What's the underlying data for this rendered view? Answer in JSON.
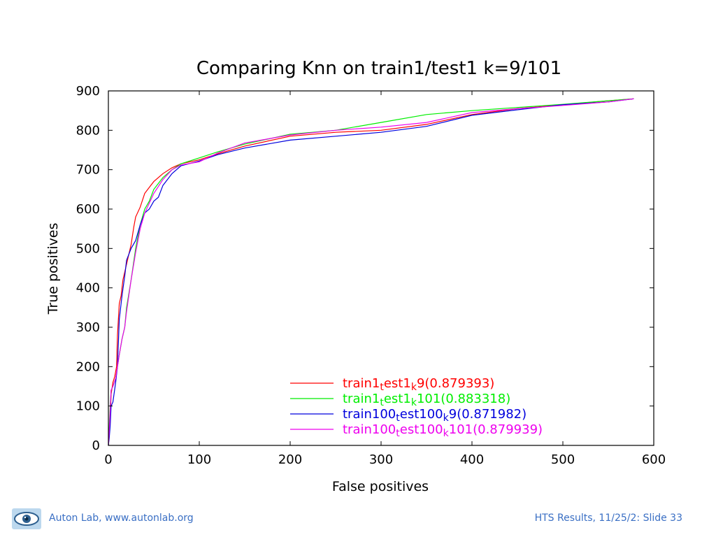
{
  "chart_data": {
    "type": "line",
    "title": "Comparing Knn on train1/test1 k=9/101",
    "xlabel": "False positives",
    "ylabel": "True positives",
    "xlim": [
      0,
      600
    ],
    "ylim": [
      0,
      900
    ],
    "x_ticks": [
      "0",
      "100",
      "200",
      "300",
      "400",
      "500",
      "600"
    ],
    "y_ticks": [
      "0",
      "100",
      "200",
      "300",
      "400",
      "500",
      "600",
      "700",
      "800",
      "900"
    ],
    "grid": false,
    "legend_position": "bottom-right",
    "series": [
      {
        "name": "train1_test1_k9(0.879393)",
        "legend_parts": [
          "train1",
          "t",
          "est1",
          "k",
          "9(0.879393)"
        ],
        "color": "#ff0000",
        "points": [
          [
            0,
            0
          ],
          [
            1,
            30
          ],
          [
            2,
            60
          ],
          [
            3,
            130
          ],
          [
            5,
            160
          ],
          [
            7,
            175
          ],
          [
            9,
            200
          ],
          [
            10,
            280
          ],
          [
            12,
            360
          ],
          [
            14,
            380
          ],
          [
            16,
            420
          ],
          [
            20,
            460
          ],
          [
            25,
            510
          ],
          [
            28,
            555
          ],
          [
            30,
            580
          ],
          [
            35,
            605
          ],
          [
            40,
            640
          ],
          [
            45,
            655
          ],
          [
            50,
            670
          ],
          [
            60,
            690
          ],
          [
            70,
            705
          ],
          [
            80,
            715
          ],
          [
            100,
            725
          ],
          [
            120,
            740
          ],
          [
            150,
            760
          ],
          [
            200,
            785
          ],
          [
            250,
            795
          ],
          [
            300,
            800
          ],
          [
            350,
            815
          ],
          [
            400,
            840
          ],
          [
            450,
            855
          ],
          [
            500,
            865
          ],
          [
            550,
            875
          ],
          [
            578,
            880
          ]
        ]
      },
      {
        "name": "train1_test1_k101(0.883318)",
        "legend_parts": [
          "train1",
          "t",
          "est1",
          "k",
          "101(0.883318)"
        ],
        "color": "#00ee00",
        "points": [
          [
            0,
            0
          ],
          [
            1,
            50
          ],
          [
            2,
            100
          ],
          [
            3,
            140
          ],
          [
            5,
            150
          ],
          [
            8,
            170
          ],
          [
            10,
            200
          ],
          [
            12,
            230
          ],
          [
            15,
            270
          ],
          [
            18,
            300
          ],
          [
            20,
            350
          ],
          [
            25,
            420
          ],
          [
            30,
            500
          ],
          [
            35,
            560
          ],
          [
            40,
            600
          ],
          [
            45,
            620
          ],
          [
            50,
            650
          ],
          [
            60,
            680
          ],
          [
            70,
            700
          ],
          [
            80,
            715
          ],
          [
            100,
            730
          ],
          [
            120,
            745
          ],
          [
            150,
            765
          ],
          [
            200,
            790
          ],
          [
            250,
            800
          ],
          [
            300,
            820
          ],
          [
            350,
            840
          ],
          [
            400,
            850
          ],
          [
            450,
            858
          ],
          [
            500,
            866
          ],
          [
            550,
            875
          ],
          [
            578,
            880
          ]
        ]
      },
      {
        "name": "train100_test100_k9(0.871982)",
        "legend_parts": [
          "train100",
          "t",
          "est100",
          "k",
          "9(0.871982)"
        ],
        "color": "#0000dd",
        "points": [
          [
            0,
            0
          ],
          [
            1,
            20
          ],
          [
            2,
            50
          ],
          [
            3,
            100
          ],
          [
            5,
            110
          ],
          [
            8,
            160
          ],
          [
            10,
            200
          ],
          [
            12,
            320
          ],
          [
            15,
            380
          ],
          [
            18,
            430
          ],
          [
            20,
            470
          ],
          [
            25,
            500
          ],
          [
            30,
            520
          ],
          [
            35,
            560
          ],
          [
            40,
            590
          ],
          [
            45,
            600
          ],
          [
            50,
            620
          ],
          [
            55,
            630
          ],
          [
            60,
            660
          ],
          [
            70,
            690
          ],
          [
            80,
            710
          ],
          [
            100,
            722
          ],
          [
            120,
            738
          ],
          [
            150,
            755
          ],
          [
            200,
            775
          ],
          [
            250,
            785
          ],
          [
            300,
            795
          ],
          [
            350,
            810
          ],
          [
            400,
            838
          ],
          [
            450,
            852
          ],
          [
            500,
            865
          ],
          [
            550,
            872
          ],
          [
            578,
            880
          ]
        ]
      },
      {
        "name": "train100_test100_k101(0.879939)",
        "legend_parts": [
          "train100",
          "t",
          "est100",
          "k",
          "101(0.879939)"
        ],
        "color": "#ee00ee",
        "points": [
          [
            0,
            0
          ],
          [
            1,
            40
          ],
          [
            2,
            90
          ],
          [
            3,
            140
          ],
          [
            5,
            150
          ],
          [
            8,
            170
          ],
          [
            10,
            200
          ],
          [
            12,
            230
          ],
          [
            15,
            270
          ],
          [
            18,
            300
          ],
          [
            20,
            340
          ],
          [
            25,
            420
          ],
          [
            30,
            490
          ],
          [
            35,
            550
          ],
          [
            40,
            590
          ],
          [
            45,
            615
          ],
          [
            50,
            640
          ],
          [
            60,
            675
          ],
          [
            70,
            700
          ],
          [
            80,
            712
          ],
          [
            100,
            720
          ],
          [
            120,
            742
          ],
          [
            150,
            768
          ],
          [
            200,
            788
          ],
          [
            250,
            800
          ],
          [
            300,
            808
          ],
          [
            350,
            820
          ],
          [
            400,
            845
          ],
          [
            450,
            855
          ],
          [
            500,
            863
          ],
          [
            550,
            872
          ],
          [
            578,
            880
          ]
        ]
      }
    ]
  },
  "footer": {
    "logo_icon": "eye-logo-icon",
    "left_text": "Auton Lab, www.autonlab.org",
    "right_text": "HTS Results, 11/25/2: Slide 33"
  }
}
